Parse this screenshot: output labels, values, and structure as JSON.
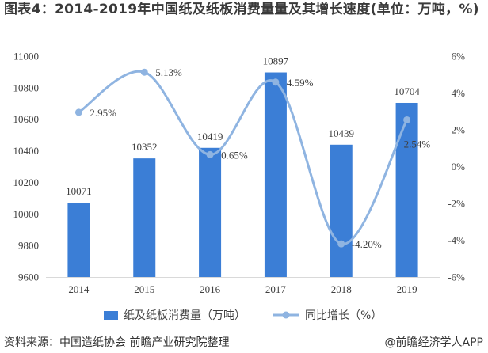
{
  "chart_data": {
    "type": "bar",
    "title": "图表4：2014-2019年中国纸及纸板消费量量及其增长速度(单位：万吨，%)",
    "categories": [
      "2014",
      "2015",
      "2016",
      "2017",
      "2018",
      "2019"
    ],
    "series": [
      {
        "name": "纸及纸板消费量（万吨）",
        "type": "bar",
        "axis": "left",
        "values": [
          10071,
          10352,
          10419,
          10897,
          10439,
          10704
        ],
        "labels": [
          "10071",
          "10352",
          "10419",
          "10897",
          "10439",
          "10704"
        ],
        "color": "#3b7ed6"
      },
      {
        "name": "同比增长（%）",
        "type": "line",
        "smooth": true,
        "axis": "right",
        "values": [
          2.95,
          5.13,
          0.65,
          4.59,
          -4.2,
          2.54
        ],
        "labels": [
          "2.95%",
          "5.13%",
          "0.65%",
          "4.59%",
          "-4.20%",
          "2.54%"
        ],
        "color": "#8fb4e1"
      }
    ],
    "y_left": {
      "ylim": [
        9600,
        11000
      ],
      "ticks": [
        {
          "value": 9600,
          "label": "9600"
        },
        {
          "value": 9800,
          "label": "9800"
        },
        {
          "value": 10000,
          "label": "10000"
        },
        {
          "value": 10200,
          "label": "10200"
        },
        {
          "value": 10400,
          "label": "10400"
        },
        {
          "value": 10600,
          "label": "10600"
        },
        {
          "value": 10800,
          "label": "10800"
        },
        {
          "value": 11000,
          "label": "11000"
        }
      ]
    },
    "y_right": {
      "ylim": [
        -6,
        6
      ],
      "ticks": [
        {
          "value": -6,
          "label": "-6%"
        },
        {
          "value": -4,
          "label": "-4%"
        },
        {
          "value": -2,
          "label": "-2%"
        },
        {
          "value": 0,
          "label": "0%"
        },
        {
          "value": 2,
          "label": "2%"
        },
        {
          "value": 4,
          "label": "4%"
        },
        {
          "value": 6,
          "label": "6%"
        }
      ]
    },
    "grid": false,
    "legend": "bottom"
  },
  "footer": {
    "source": "资料来源：中国造纸协会 前瞻产业研究院整理",
    "brand": "@前瞻经济学人APP"
  }
}
